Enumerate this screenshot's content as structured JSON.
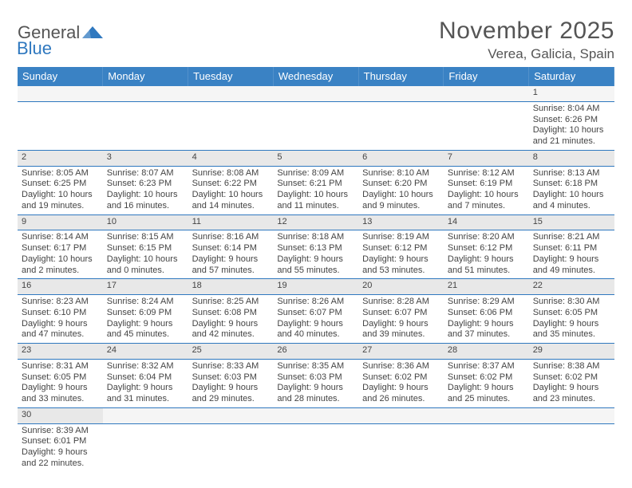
{
  "logo": {
    "part1": "General",
    "part2": "Blue",
    "triangle_color": "#2f78bf"
  },
  "title": "November 2025",
  "location": "Verea, Galicia, Spain",
  "header_bg": "#3a82c4",
  "accent_line": "#2f78bf",
  "days": [
    "Sunday",
    "Monday",
    "Tuesday",
    "Wednesday",
    "Thursday",
    "Friday",
    "Saturday"
  ],
  "weeks": [
    [
      null,
      null,
      null,
      null,
      null,
      null,
      {
        "n": "1",
        "rise": "8:04 AM",
        "set": "6:26 PM",
        "dl": "10 hours and 21 minutes."
      }
    ],
    [
      {
        "n": "2",
        "rise": "8:05 AM",
        "set": "6:25 PM",
        "dl": "10 hours and 19 minutes."
      },
      {
        "n": "3",
        "rise": "8:07 AM",
        "set": "6:23 PM",
        "dl": "10 hours and 16 minutes."
      },
      {
        "n": "4",
        "rise": "8:08 AM",
        "set": "6:22 PM",
        "dl": "10 hours and 14 minutes."
      },
      {
        "n": "5",
        "rise": "8:09 AM",
        "set": "6:21 PM",
        "dl": "10 hours and 11 minutes."
      },
      {
        "n": "6",
        "rise": "8:10 AM",
        "set": "6:20 PM",
        "dl": "10 hours and 9 minutes."
      },
      {
        "n": "7",
        "rise": "8:12 AM",
        "set": "6:19 PM",
        "dl": "10 hours and 7 minutes."
      },
      {
        "n": "8",
        "rise": "8:13 AM",
        "set": "6:18 PM",
        "dl": "10 hours and 4 minutes."
      }
    ],
    [
      {
        "n": "9",
        "rise": "8:14 AM",
        "set": "6:17 PM",
        "dl": "10 hours and 2 minutes."
      },
      {
        "n": "10",
        "rise": "8:15 AM",
        "set": "6:15 PM",
        "dl": "10 hours and 0 minutes."
      },
      {
        "n": "11",
        "rise": "8:16 AM",
        "set": "6:14 PM",
        "dl": "9 hours and 57 minutes."
      },
      {
        "n": "12",
        "rise": "8:18 AM",
        "set": "6:13 PM",
        "dl": "9 hours and 55 minutes."
      },
      {
        "n": "13",
        "rise": "8:19 AM",
        "set": "6:12 PM",
        "dl": "9 hours and 53 minutes."
      },
      {
        "n": "14",
        "rise": "8:20 AM",
        "set": "6:12 PM",
        "dl": "9 hours and 51 minutes."
      },
      {
        "n": "15",
        "rise": "8:21 AM",
        "set": "6:11 PM",
        "dl": "9 hours and 49 minutes."
      }
    ],
    [
      {
        "n": "16",
        "rise": "8:23 AM",
        "set": "6:10 PM",
        "dl": "9 hours and 47 minutes."
      },
      {
        "n": "17",
        "rise": "8:24 AM",
        "set": "6:09 PM",
        "dl": "9 hours and 45 minutes."
      },
      {
        "n": "18",
        "rise": "8:25 AM",
        "set": "6:08 PM",
        "dl": "9 hours and 42 minutes."
      },
      {
        "n": "19",
        "rise": "8:26 AM",
        "set": "6:07 PM",
        "dl": "9 hours and 40 minutes."
      },
      {
        "n": "20",
        "rise": "8:28 AM",
        "set": "6:07 PM",
        "dl": "9 hours and 39 minutes."
      },
      {
        "n": "21",
        "rise": "8:29 AM",
        "set": "6:06 PM",
        "dl": "9 hours and 37 minutes."
      },
      {
        "n": "22",
        "rise": "8:30 AM",
        "set": "6:05 PM",
        "dl": "9 hours and 35 minutes."
      }
    ],
    [
      {
        "n": "23",
        "rise": "8:31 AM",
        "set": "6:05 PM",
        "dl": "9 hours and 33 minutes."
      },
      {
        "n": "24",
        "rise": "8:32 AM",
        "set": "6:04 PM",
        "dl": "9 hours and 31 minutes."
      },
      {
        "n": "25",
        "rise": "8:33 AM",
        "set": "6:03 PM",
        "dl": "9 hours and 29 minutes."
      },
      {
        "n": "26",
        "rise": "8:35 AM",
        "set": "6:03 PM",
        "dl": "9 hours and 28 minutes."
      },
      {
        "n": "27",
        "rise": "8:36 AM",
        "set": "6:02 PM",
        "dl": "9 hours and 26 minutes."
      },
      {
        "n": "28",
        "rise": "8:37 AM",
        "set": "6:02 PM",
        "dl": "9 hours and 25 minutes."
      },
      {
        "n": "29",
        "rise": "8:38 AM",
        "set": "6:02 PM",
        "dl": "9 hours and 23 minutes."
      }
    ],
    [
      {
        "n": "30",
        "rise": "8:39 AM",
        "set": "6:01 PM",
        "dl": "9 hours and 22 minutes."
      },
      null,
      null,
      null,
      null,
      null,
      null
    ]
  ],
  "labels": {
    "sunrise": "Sunrise: ",
    "sunset": "Sunset: ",
    "daylight": "Daylight: "
  }
}
